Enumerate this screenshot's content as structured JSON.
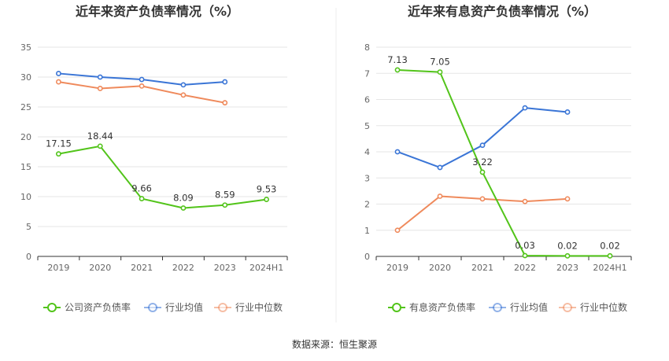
{
  "chart_data": [
    {
      "type": "line",
      "title": "近年来资产负债率情况（%）",
      "categories": [
        "2019",
        "2020",
        "2021",
        "2022",
        "2023",
        "2024H1"
      ],
      "ylim": [
        0,
        35
      ],
      "yticks": [
        0,
        5,
        10,
        15,
        20,
        25,
        30,
        35
      ],
      "grid": true,
      "legend_position": "bottom",
      "series": [
        {
          "name": "公司资产负债率",
          "color": "#52c41a",
          "values": [
            17.15,
            18.44,
            9.66,
            8.09,
            8.59,
            9.53
          ],
          "labels": [
            "17.15",
            "18.44",
            "9.66",
            "8.09",
            "8.59",
            "9.53"
          ]
        },
        {
          "name": "行业均值",
          "color": "#3a75d6",
          "values": [
            30.6,
            30.0,
            29.6,
            28.7,
            29.2,
            null
          ],
          "labels": []
        },
        {
          "name": "行业中位数",
          "color": "#ef8a5c",
          "values": [
            29.2,
            28.1,
            28.5,
            27.0,
            25.7,
            null
          ],
          "labels": []
        }
      ]
    },
    {
      "type": "line",
      "title": "近年来有息资产负债率情况（%）",
      "categories": [
        "2019",
        "2020",
        "2021",
        "2022",
        "2023",
        "2024H1"
      ],
      "ylim": [
        0,
        8
      ],
      "yticks": [
        0,
        1,
        2,
        3,
        4,
        5,
        6,
        7,
        8
      ],
      "grid": true,
      "legend_position": "bottom",
      "series": [
        {
          "name": "有息资产负债率",
          "color": "#52c41a",
          "values": [
            7.13,
            7.05,
            3.22,
            0.03,
            0.02,
            0.02
          ],
          "labels": [
            "7.13",
            "7.05",
            "3.22",
            "0.03",
            "0.02",
            "0.02"
          ]
        },
        {
          "name": "行业均值",
          "color": "#3a75d6",
          "values": [
            4.0,
            3.4,
            4.25,
            5.68,
            5.52,
            null
          ],
          "labels": []
        },
        {
          "name": "行业中位数",
          "color": "#ef8a5c",
          "values": [
            1.0,
            2.3,
            2.2,
            2.1,
            2.2,
            null
          ],
          "labels": []
        }
      ]
    }
  ],
  "footer": {
    "source": "数据来源：恒生聚源"
  }
}
